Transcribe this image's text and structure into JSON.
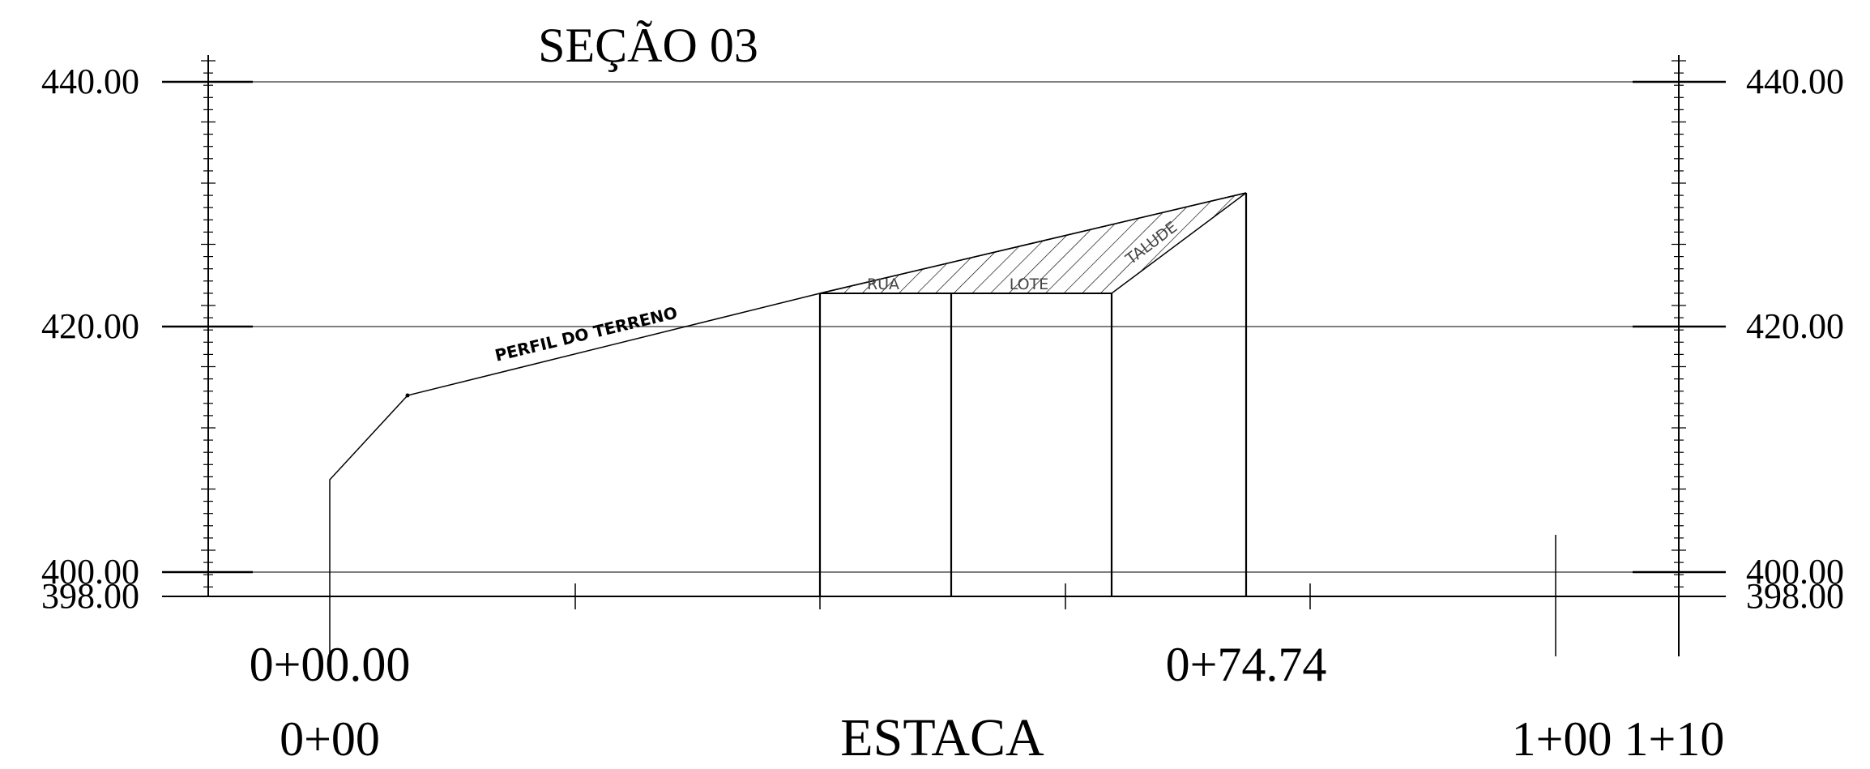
{
  "title": "SEÇÃO 03",
  "elevation_labels": {
    "e440": "440.00",
    "e420": "420.00",
    "e400": "400.00",
    "e398": "398.00"
  },
  "profile_label": "PERFIL DO TERRENO",
  "zone_labels": {
    "rua": "RUA",
    "lote": "LOTE",
    "talude": "TALUDE"
  },
  "station_marks": {
    "start": "0+00.00",
    "end": "0+74.74"
  },
  "axis": {
    "origin": "0+00",
    "label": "ESTACA",
    "end_ticks": "1+00 1+10"
  },
  "colors": {
    "ink": "#000000",
    "grid": "#555555",
    "background": "#ffffff"
  }
}
